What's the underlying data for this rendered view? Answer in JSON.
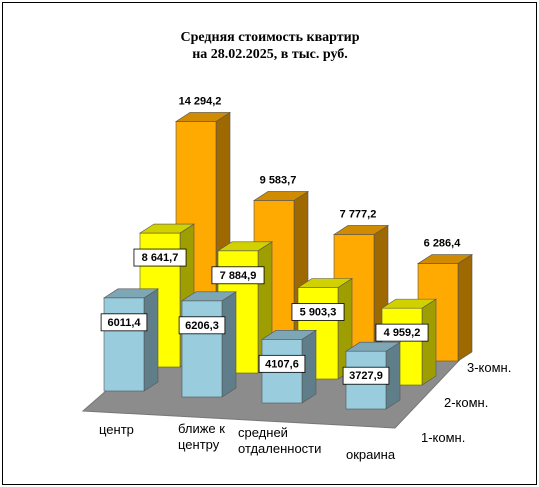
{
  "chart_data": {
    "type": "bar",
    "title": "Средняя стоимость квартир",
    "subtitle": "на 28.02.2025, в тыс. руб.",
    "categories": [
      "центр",
      "ближе к центру",
      "средней отдаленности",
      "окраина"
    ],
    "series": [
      {
        "name": "1-комн.",
        "values": [
          6011.4,
          6206.3,
          4107.6,
          3727.9
        ],
        "labels": [
          "6011,4",
          "6206,3",
          "4107,6",
          "3727,9"
        ],
        "color": "#99ccdd"
      },
      {
        "name": "2-комн.",
        "values": [
          8641.7,
          7884.9,
          5903.3,
          4959.2
        ],
        "labels": [
          "8 641,7",
          "7 884,9",
          "5 903,3",
          "4 959,2"
        ],
        "color": "#ffff00"
      },
      {
        "name": "3-комн.",
        "values": [
          14294.2,
          9583.7,
          7777.2,
          6286.4
        ],
        "labels": [
          "14 294,2",
          "9 583,7",
          "7 777,2",
          "6 286,4"
        ],
        "color": "#ffaa00"
      }
    ],
    "category_label_lines": [
      [
        "центр"
      ],
      [
        "ближе к",
        "центру"
      ],
      [
        "средней",
        "отдаленности"
      ],
      [
        "окраина"
      ]
    ],
    "ylim": [
      0,
      16000
    ],
    "grid": false,
    "legend": "none",
    "floor_color": "#8c8c8c",
    "depth": "3d"
  }
}
